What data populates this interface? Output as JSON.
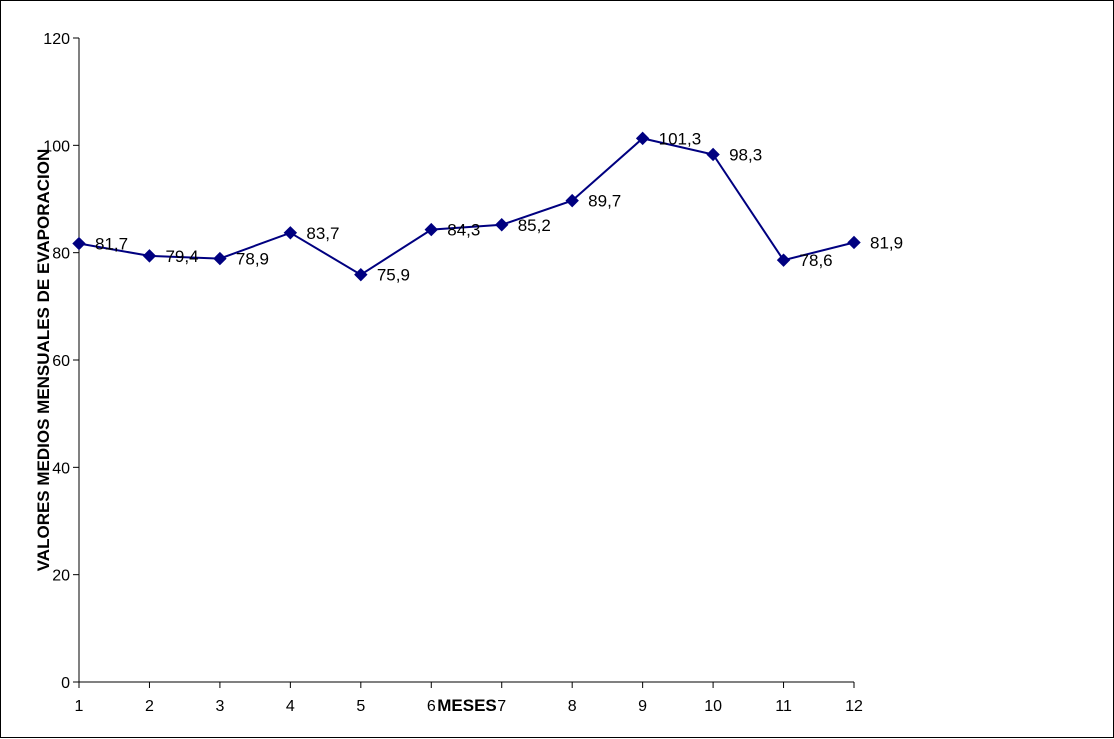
{
  "chart_data": {
    "type": "line",
    "title": "",
    "xlabel": "MESES",
    "ylabel": "VALORES MEDIOS MENSUALES DE EVAPORACION",
    "x": [
      1,
      2,
      3,
      4,
      5,
      6,
      7,
      8,
      9,
      10,
      11,
      12
    ],
    "x_tick_labels": [
      "1",
      "2",
      "3",
      "4",
      "5",
      "6",
      "7",
      "8",
      "9",
      "10",
      "11",
      "12"
    ],
    "y_ticks": [
      0,
      20,
      40,
      60,
      80,
      100,
      120
    ],
    "y_tick_labels": [
      "0",
      "20",
      "40",
      "60",
      "80",
      "100",
      "120"
    ],
    "ylim": [
      0,
      120
    ],
    "grid": false,
    "legend": "none",
    "series": [
      {
        "values": [
          81.7,
          79.4,
          78.9,
          83.7,
          75.9,
          84.3,
          85.2,
          89.7,
          101.3,
          98.3,
          78.6,
          81.9
        ],
        "data_labels": [
          "81,7",
          "79,4",
          "78,9",
          "83,7",
          "75,9",
          "84,3",
          "85,2",
          "89,7",
          "101,3",
          "98,3",
          "78,6",
          "81,9"
        ],
        "color": "#000080",
        "marker": "diamond"
      }
    ]
  }
}
